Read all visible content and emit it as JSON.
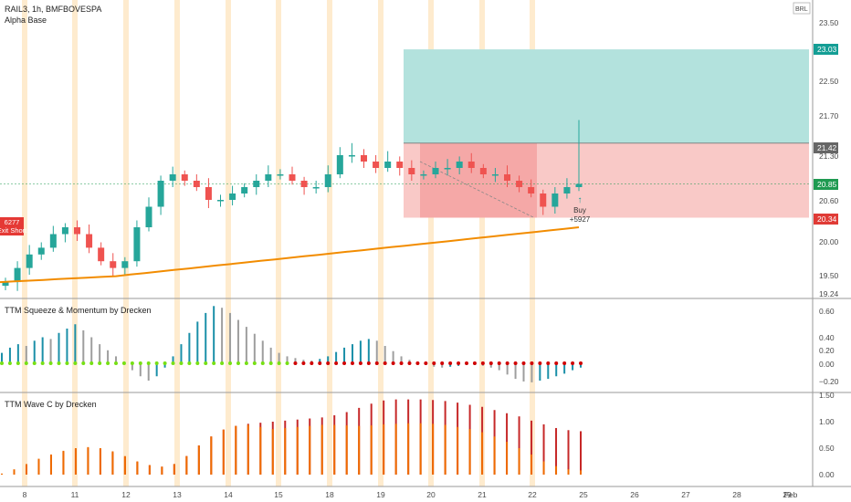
{
  "header": {
    "symbol_line": "RAIL3, 1h, BMFBOVESPA",
    "indicator_name": "Alpha Base",
    "currency": "BRL"
  },
  "panes": {
    "squeeze_title": "TTM Squeeze & Momentum by Drecken",
    "wave_title": "TTM Wave C by Drecken"
  },
  "price_axis": {
    "ticks": [
      "23.50",
      "22.50",
      "21.70",
      "21.30",
      "20.60",
      "20.00",
      "19.50",
      "19.24"
    ],
    "badge_target": "23.03",
    "badge_entry": "21.42",
    "badge_current": "20.85",
    "badge_stop": "20.34"
  },
  "squeeze_axis": {
    "ticks": [
      "0.60",
      "0.40",
      "0.20",
      "0.00",
      "−0.20"
    ]
  },
  "wave_axis": {
    "ticks": [
      "1.50",
      "1.00",
      "0.50",
      "0.00"
    ]
  },
  "time_axis": {
    "ticks": [
      "8",
      "11",
      "12",
      "13",
      "14",
      "15",
      "18",
      "19",
      "20",
      "21",
      "22",
      "25",
      "26",
      "27",
      "28",
      "29",
      "Feb"
    ]
  },
  "annotations": {
    "short_label": "Exit Short",
    "short_value": "6277",
    "buy_label": "Buy",
    "buy_value": "+5927"
  },
  "colors": {
    "up_candle": "#26a69a",
    "down_candle": "#ef5350",
    "sma": "#f28c00",
    "target_zone": "#b3e2dd",
    "stop_zone": "#f9c9c7",
    "session_band": "#fde4bd",
    "squeeze_on": "#d00000",
    "squeeze_off": "#76e013",
    "wave_fast": "#ef6c00",
    "wave_slow": "#c62828"
  },
  "chart_data": [
    {
      "type": "candlestick",
      "title": "RAIL3, 1h, BMFBOVESPA",
      "x_categories": [
        "8",
        "11",
        "12",
        "13",
        "14",
        "15",
        "18",
        "19",
        "20",
        "21",
        "22",
        "25",
        "26",
        "27",
        "28",
        "29",
        "Feb"
      ],
      "ylim": [
        19.24,
        23.5
      ],
      "approx_close_path": [
        19.4,
        19.6,
        19.8,
        19.9,
        20.1,
        20.2,
        20.1,
        19.9,
        19.7,
        19.6,
        19.7,
        20.2,
        20.5,
        20.9,
        21.0,
        20.9,
        20.8,
        20.6,
        20.6,
        20.7,
        20.8,
        20.9,
        21.0,
        21.0,
        20.9,
        20.8,
        20.8,
        21.0,
        21.3,
        21.3,
        21.2,
        21.1,
        21.2,
        21.1,
        21.0,
        21.0,
        21.1,
        21.1,
        21.2,
        21.1,
        21.0,
        21.0,
        20.9,
        20.8,
        20.7,
        20.5,
        20.7,
        20.8,
        20.85
      ],
      "moving_average": {
        "color": "orange",
        "approx_values": [
          19.4,
          20.2
        ]
      },
      "position": {
        "side": "long",
        "entry": 21.42,
        "target": 23.03,
        "stop": 20.34
      }
    },
    {
      "type": "bar",
      "title": "TTM Squeeze & Momentum by Drecken",
      "ylim": [
        -0.3,
        0.7
      ],
      "values": [
        0.12,
        0.18,
        0.22,
        0.2,
        0.26,
        0.3,
        0.28,
        0.35,
        0.4,
        0.45,
        0.38,
        0.3,
        0.22,
        0.15,
        0.08,
        0.02,
        -0.08,
        -0.15,
        -0.2,
        -0.15,
        -0.05,
        0.08,
        0.22,
        0.35,
        0.48,
        0.58,
        0.66,
        0.64,
        0.58,
        0.5,
        0.42,
        0.34,
        0.26,
        0.18,
        0.12,
        0.08,
        0.06,
        0.04,
        0.03,
        0.05,
        0.08,
        0.13,
        0.18,
        0.22,
        0.26,
        0.28,
        0.26,
        0.2,
        0.14,
        0.08,
        0.04,
        0.01,
        -0.02,
        -0.04,
        -0.05,
        -0.04,
        -0.03,
        -0.02,
        -0.02,
        -0.03,
        -0.05,
        -0.08,
        -0.13,
        -0.18,
        -0.21,
        -0.22,
        -0.2,
        -0.18,
        -0.15,
        -0.12,
        -0.08,
        -0.05
      ]
    },
    {
      "type": "bar",
      "title": "TTM Wave C by Drecken",
      "ylim": [
        -0.1,
        1.5
      ],
      "fast_values": [
        0.02,
        0.1,
        0.2,
        0.3,
        0.38,
        0.45,
        0.5,
        0.52,
        0.5,
        0.44,
        0.35,
        0.25,
        0.18,
        0.15,
        0.2,
        0.35,
        0.55,
        0.72,
        0.85,
        0.92,
        0.94,
        0.9,
        0.86,
        0.88,
        0.9,
        0.92,
        0.94,
        0.94,
        0.93,
        0.92,
        0.93,
        0.95,
        0.96,
        0.97,
        0.97,
        0.96,
        0.94,
        0.9,
        0.86,
        0.8,
        0.72,
        0.62,
        0.5,
        0.38,
        0.25,
        0.16,
        0.1,
        0.08
      ],
      "slow_values": [
        0.0,
        0.08,
        0.18,
        0.28,
        0.36,
        0.43,
        0.48,
        0.5,
        0.48,
        0.42,
        0.34,
        0.24,
        0.18,
        0.15,
        0.2,
        0.35,
        0.55,
        0.72,
        0.85,
        0.92,
        0.96,
        0.98,
        1.0,
        1.02,
        1.04,
        1.06,
        1.08,
        1.12,
        1.18,
        1.26,
        1.34,
        1.4,
        1.42,
        1.42,
        1.42,
        1.41,
        1.39,
        1.36,
        1.32,
        1.28,
        1.22,
        1.16,
        1.1,
        1.02,
        0.95,
        0.88,
        0.84,
        0.82
      ]
    }
  ]
}
